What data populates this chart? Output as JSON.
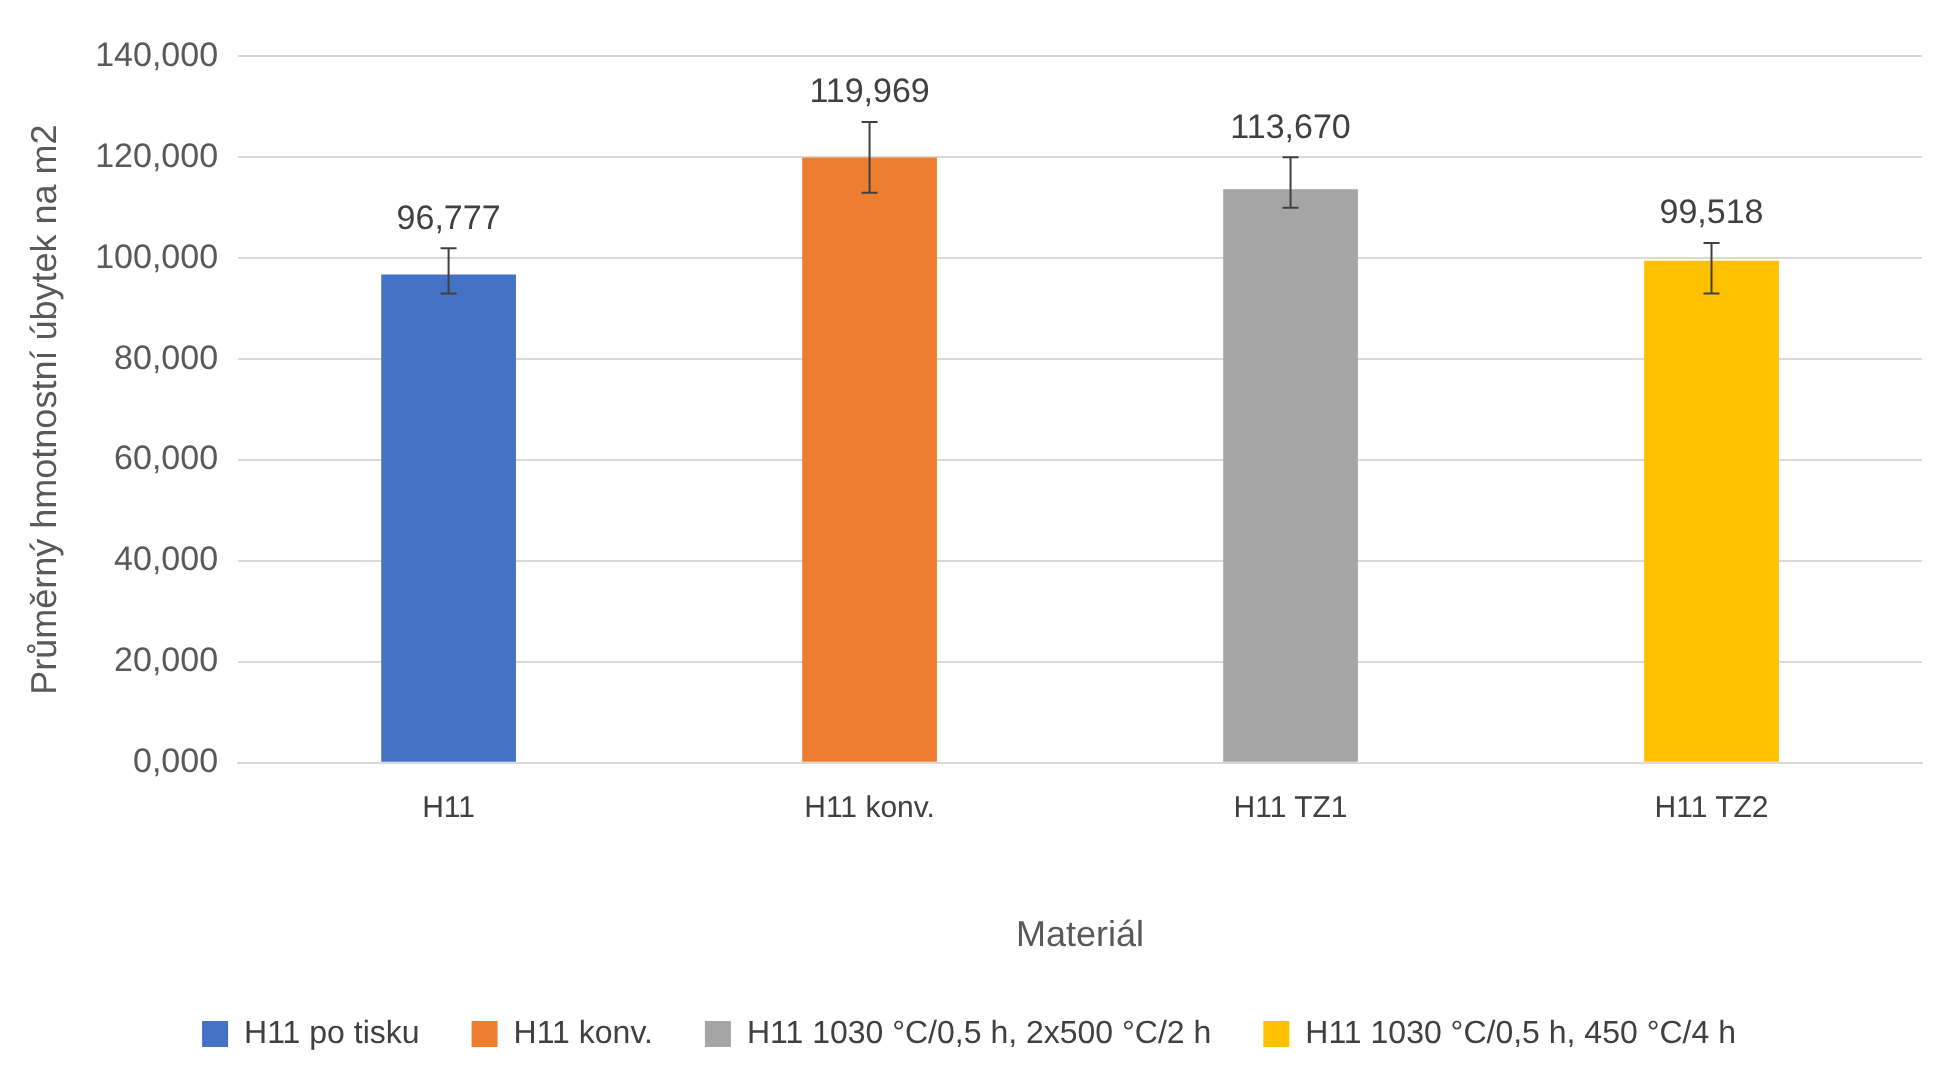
{
  "chart_data": {
    "type": "bar",
    "xlabel": "Materiál",
    "ylabel": "Průměrný hmotnostní úbytek na m2",
    "categories": [
      "H11",
      "H11 konv.",
      "H11 TZ1",
      "H11 TZ2"
    ],
    "series": [
      {
        "name": "H11 po tisku",
        "color": "#4472c4",
        "values": [
          96.777,
          null,
          null,
          null
        ],
        "errors": [
          [
            93,
            102
          ],
          null,
          null,
          null
        ],
        "value_labels": [
          "96,777",
          null,
          null,
          null
        ]
      },
      {
        "name": "H11 konv.",
        "color": "#ed7d31",
        "values": [
          null,
          119.969,
          null,
          null
        ],
        "errors": [
          null,
          [
            113,
            127
          ],
          null,
          null
        ],
        "value_labels": [
          null,
          "119,969",
          null,
          null
        ]
      },
      {
        "name": "H11 1030 °C/0,5 h, 2x500 °C/2 h",
        "color": "#a5a5a5",
        "values": [
          null,
          null,
          113.67,
          null
        ],
        "errors": [
          null,
          null,
          [
            110,
            120
          ],
          null
        ],
        "value_labels": [
          null,
          null,
          "113,670",
          null
        ]
      },
      {
        "name": "H11 1030 °C/0,5 h, 450 °C/4 h",
        "color": "#ffc000",
        "values": [
          null,
          null,
          null,
          99.518
        ],
        "errors": [
          null,
          null,
          null,
          [
            93,
            103
          ]
        ],
        "value_labels": [
          null,
          null,
          null,
          "99,518"
        ]
      }
    ],
    "ylim": [
      0,
      140
    ],
    "yticks": [
      {
        "value": 0,
        "label": "0,000"
      },
      {
        "value": 20,
        "label": "20,000"
      },
      {
        "value": 40,
        "label": "40,000"
      },
      {
        "value": 60,
        "label": "60,000"
      },
      {
        "value": 80,
        "label": "80,000"
      },
      {
        "value": 100,
        "label": "100,000"
      },
      {
        "value": 120,
        "label": "120,000"
      },
      {
        "value": 140,
        "label": "140,000"
      }
    ],
    "grid": "y",
    "legend": "bottom"
  }
}
